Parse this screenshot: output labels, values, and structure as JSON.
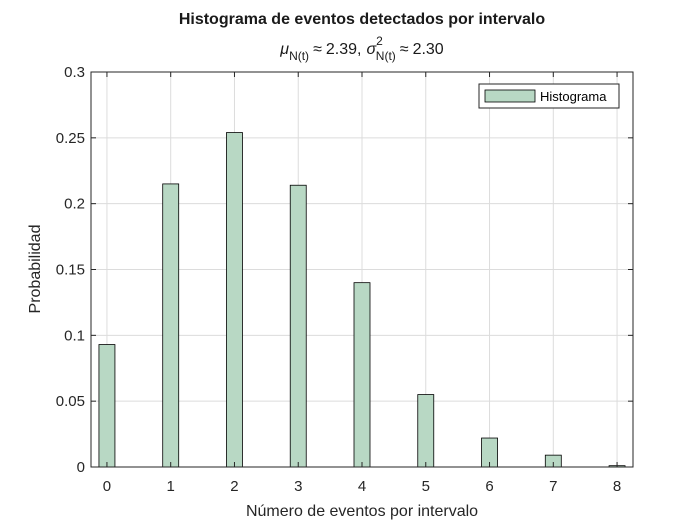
{
  "chart_data": {
    "type": "bar",
    "title": "Histograma de eventos detectados por intervalo",
    "subtitle": {
      "mu_symbol": "μ",
      "mu_sub": "N(t)",
      "approx": "≈",
      "mu_value": "2.39,",
      "sigma_symbol": "σ",
      "sigma_sup": "2",
      "sigma_sub": "N(t)",
      "sigma_value": "2.30"
    },
    "xlabel": "Número de eventos por intervalo",
    "ylabel": "Probabilidad",
    "x": [
      0,
      1,
      2,
      3,
      4,
      5,
      6,
      7,
      8
    ],
    "values": [
      0.093,
      0.215,
      0.254,
      0.214,
      0.14,
      0.055,
      0.022,
      0.009,
      0.001
    ],
    "xlim": [
      -0.25,
      8.25
    ],
    "ylim": [
      0,
      0.3
    ],
    "xticks": [
      "0",
      "1",
      "2",
      "3",
      "4",
      "5",
      "6",
      "7",
      "8"
    ],
    "yticks": [
      "0",
      "0.05",
      "0.1",
      "0.15",
      "0.2",
      "0.25",
      "0.3"
    ],
    "ytick_values": [
      0,
      0.05,
      0.1,
      0.15,
      0.2,
      0.25,
      0.3
    ],
    "series_name": "Histograma",
    "bar_color": "#b8d8c4",
    "grid": true,
    "legend_position": "top-right"
  }
}
